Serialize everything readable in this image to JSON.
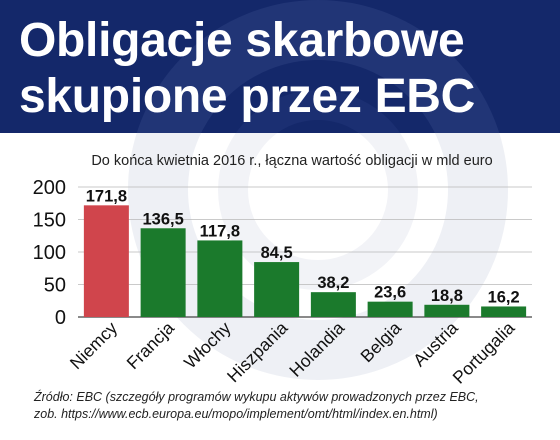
{
  "header": {
    "title_line1": "Obligacje skarbowe",
    "title_line2": "skupione przez EBC",
    "bg_color": "#14286a"
  },
  "chart_data": {
    "type": "bar",
    "subtitle": "Do końca kwietnia 2016 r., łączna wartość obligacji w mld euro",
    "categories": [
      "Niemcy",
      "Francja",
      "Włochy",
      "Hiszpania",
      "Holandia",
      "Belgia",
      "Austria",
      "Portugalia"
    ],
    "values": [
      171.8,
      136.5,
      117.8,
      84.5,
      38.2,
      23.6,
      18.8,
      16.2
    ],
    "value_labels": [
      "171,8",
      "136,5",
      "117,8",
      "84,5",
      "38,2",
      "23,6",
      "18,8",
      "16,2"
    ],
    "colors": [
      "#d0454c",
      "#1b7a2c",
      "#1b7a2c",
      "#1b7a2c",
      "#1b7a2c",
      "#1b7a2c",
      "#1b7a2c",
      "#1b7a2c"
    ],
    "ylim": [
      0,
      200
    ],
    "yticks": [
      0,
      50,
      100,
      150,
      200
    ],
    "grid": true,
    "xlabel": "",
    "ylabel": ""
  },
  "source": {
    "line1": "Źródło: EBC (szczegóły programów wykupu aktywów prowadzonych przez EBC,",
    "line2": "zob. https://www.ecb.europa.eu/mopo/implement/omt/html/index.en.html)"
  }
}
